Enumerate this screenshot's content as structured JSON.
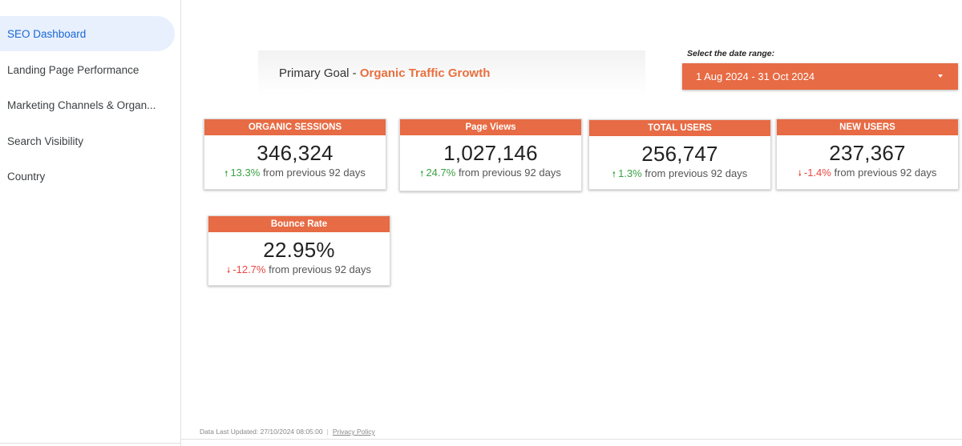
{
  "sidebar": {
    "items": [
      {
        "label": "SEO Dashboard",
        "active": true
      },
      {
        "label": "Landing Page Performance",
        "active": false
      },
      {
        "label": "Marketing Channels & Organ...",
        "active": false
      },
      {
        "label": "Search Visibility",
        "active": false
      },
      {
        "label": "Country",
        "active": false
      }
    ]
  },
  "goal": {
    "prefix": "Primary Goal - ",
    "highlight": "Organic Traffic Growth"
  },
  "date_range": {
    "label": "Select the date range:",
    "value": "1 Aug 2024 - 31 Oct 2024",
    "icon": "dropdown-caret-icon"
  },
  "kpis": [
    {
      "title": "ORGANIC SESSIONS",
      "value": "346,324",
      "direction": "up",
      "change": "13.3%",
      "suffix": "from previous 92 days"
    },
    {
      "title": "Page Views",
      "value": "1,027,146",
      "direction": "up",
      "change": "24.7%",
      "suffix": "from previous 92 days"
    },
    {
      "title": "TOTAL USERS",
      "value": "256,747",
      "direction": "up",
      "change": "1.3%",
      "suffix": "from previous 92 days"
    },
    {
      "title": "NEW USERS",
      "value": "237,367",
      "direction": "down",
      "change": "-1.4%",
      "suffix": "from previous 92 days"
    },
    {
      "title": "Bounce Rate",
      "value": "22.95%",
      "direction": "down",
      "change": "-12.7%",
      "suffix": "from previous 92 days"
    }
  ],
  "footer": {
    "updated": "Data Last Updated: 27/10/2024 08:05:00",
    "privacy": "Privacy Policy"
  },
  "colors": {
    "accent": "#e76b44",
    "up": "#3aa142",
    "down": "#e8473e",
    "active_nav_bg": "#e8f0fe",
    "active_nav_text": "#1967d2"
  }
}
